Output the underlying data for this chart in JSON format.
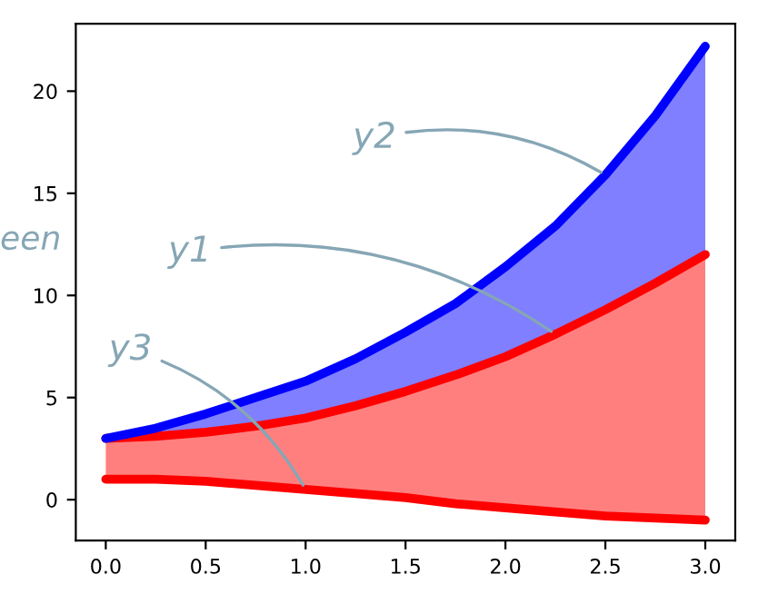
{
  "chart_data": {
    "type": "line",
    "x": [
      0,
      0.25,
      0.5,
      0.75,
      1,
      1.25,
      1.5,
      1.75,
      2,
      2.25,
      2.5,
      2.75,
      3
    ],
    "series": [
      {
        "color": "#ff0000",
        "values": [
          1,
          1,
          0.9,
          0.7,
          0.5,
          0.3,
          0.1,
          -0.2,
          -0.4,
          -0.6,
          -0.8,
          -0.9,
          -1
        ]
      },
      {
        "color": "#ff0000",
        "values": [
          3,
          3.1,
          3.3,
          3.6,
          4,
          4.6,
          5.3,
          6.1,
          7,
          8.1,
          9.3,
          10.6,
          12
        ],
        "lower": [
          1,
          1,
          0.9,
          0.7,
          0.5,
          0.3,
          0.1,
          -0.2,
          -0.4,
          -0.6,
          -0.8,
          -0.9,
          -1
        ],
        "upper": [
          3,
          3.1,
          3.3,
          3.6,
          4,
          4.6,
          5.3,
          6.1,
          7,
          8.1,
          9.3,
          10.6,
          12
        ]
      },
      {
        "color": "#0000ff",
        "values": [
          3,
          3.5,
          4.2,
          5,
          5.8,
          6.9,
          8.2,
          9.6,
          11.4,
          13.4,
          15.9,
          18.8,
          22.2
        ],
        "lower": [
          3,
          3.1,
          3.3,
          3.6,
          4,
          4.6,
          5.3,
          6.1,
          7,
          8.1,
          9.3,
          10.6,
          12
        ],
        "upper": [
          3,
          3.5,
          4.2,
          5,
          5.8,
          6.9,
          8.2,
          9.6,
          11.4,
          13.4,
          15.9,
          18.8,
          22.2
        ]
      }
    ],
    "annotations": [
      {
        "text": "y2",
        "x": 2.5,
        "y": 15.9
      },
      {
        "text": "y1",
        "x": 2.25,
        "y": 8.1
      },
      {
        "text": "y3",
        "x": 1,
        "y": 0.5
      },
      "een"
    ],
    "xlim": [
      -0.15,
      3.15
    ],
    "ylim": [
      -2,
      23.3
    ],
    "xticks": [
      {
        "value": 0,
        "label": "0.0"
      },
      {
        "value": 0.5,
        "label": "0.5"
      },
      {
        "value": 1,
        "label": "1.0"
      },
      {
        "value": 1.5,
        "label": "1.5"
      },
      {
        "value": 2,
        "label": "2.0"
      },
      {
        "value": 2.5,
        "label": "2.5"
      },
      {
        "value": 3,
        "label": "3.0"
      }
    ],
    "yticks": [
      0,
      5,
      10,
      15,
      20
    ],
    "grid": false,
    "legend": false
  }
}
